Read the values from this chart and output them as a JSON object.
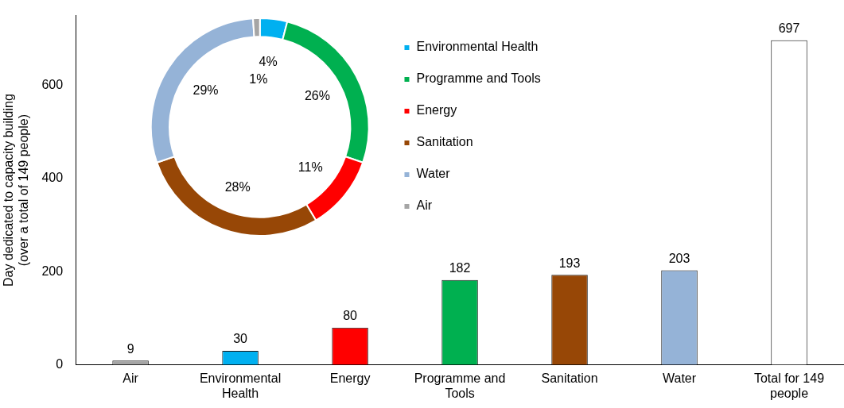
{
  "chart_data": [
    {
      "type": "bar",
      "ylabel": "Day dedicated to capacity building\n(over a total of 149 people)",
      "categories": [
        "Air",
        "Environmental Health",
        "Energy",
        "Programme and Tools",
        "Sanitation",
        "Water",
        "Total for 149 people"
      ],
      "values": [
        9,
        30,
        80,
        182,
        193,
        203,
        697
      ],
      "colors": [
        "#a5a5a5",
        "#00b0f0",
        "#ff0000",
        "#00b050",
        "#974706",
        "#95b3d7",
        "#ffffff"
      ],
      "ylim": [
        0,
        750
      ],
      "yticks": [
        0,
        200,
        400,
        600
      ],
      "grid": false,
      "legend": false,
      "data_labels": true
    },
    {
      "type": "donut",
      "categories": [
        "Environmental Health",
        "Programme and Tools",
        "Energy",
        "Sanitation",
        "Water",
        "Air"
      ],
      "values": [
        4,
        26,
        11,
        28,
        29,
        1
      ],
      "colors": [
        "#00b0f0",
        "#00b050",
        "#ff0000",
        "#974706",
        "#95b3d7",
        "#a5a5a5"
      ],
      "value_labels": [
        "4%",
        "26%",
        "11%",
        "28%",
        "29%",
        "1%"
      ],
      "legend": "right"
    }
  ]
}
